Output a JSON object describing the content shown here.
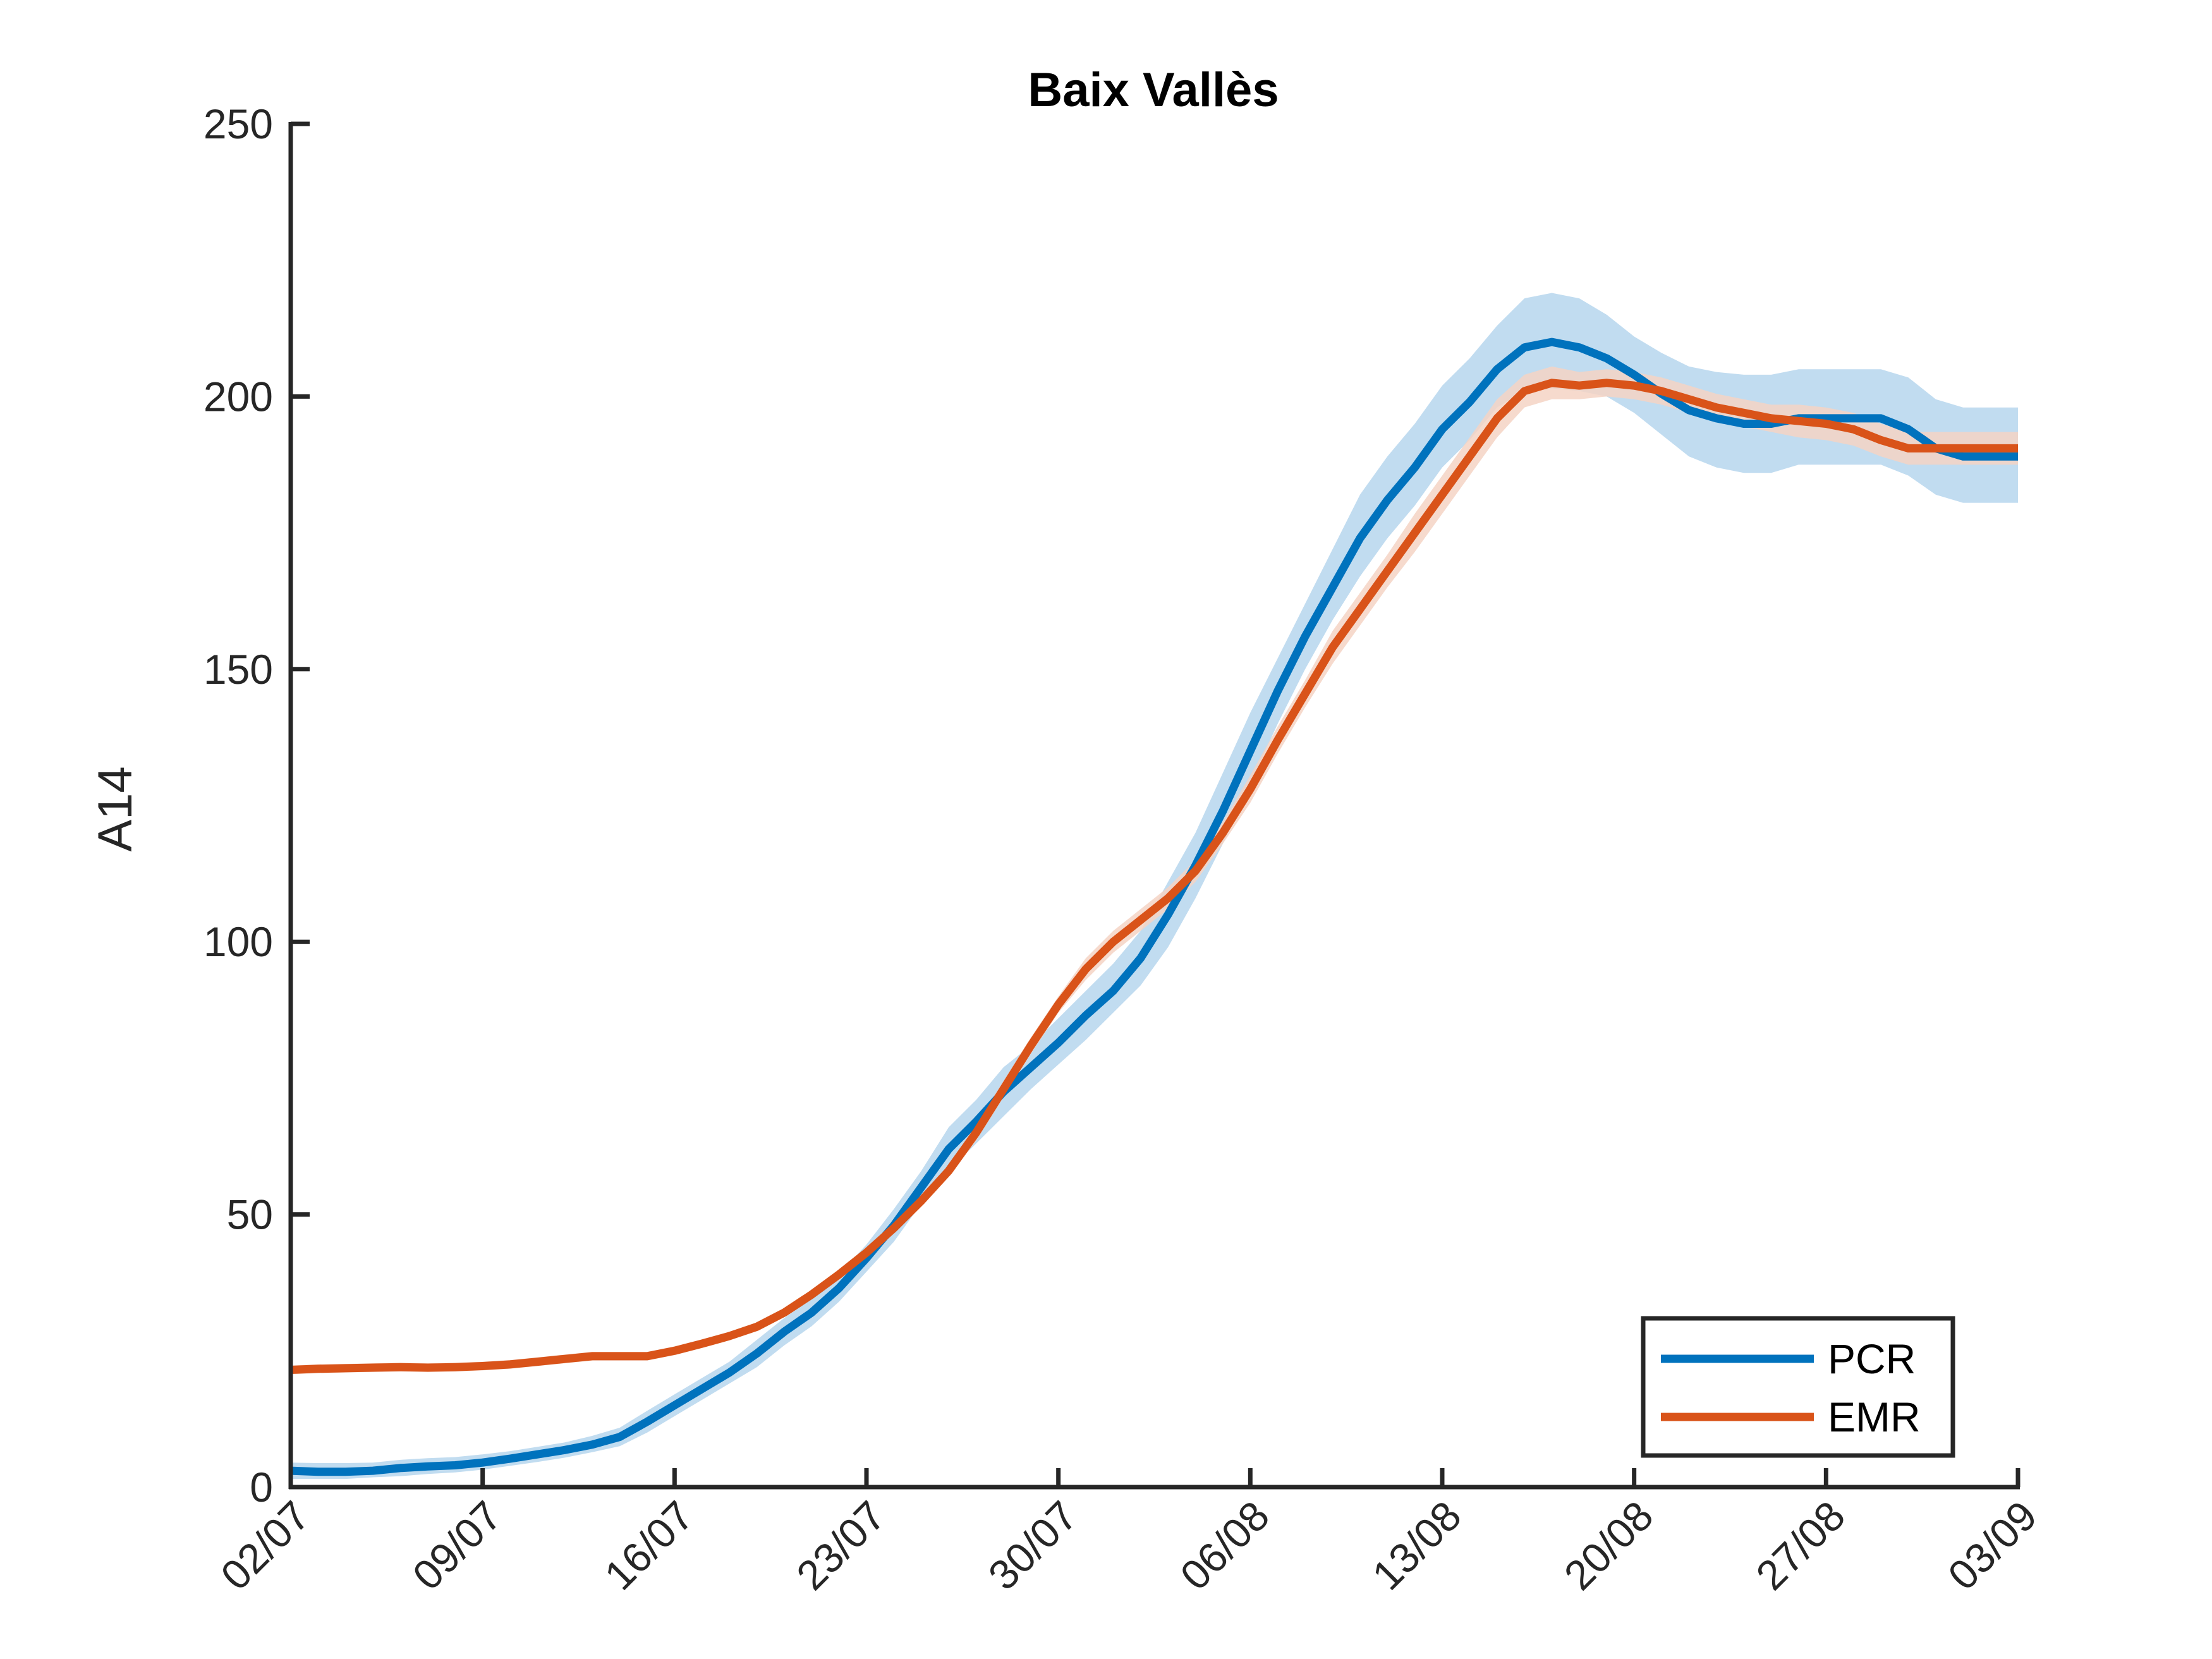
{
  "chart_data": {
    "type": "line",
    "title": "Baix Vallès",
    "xlabel": "",
    "ylabel": "A14",
    "ylim": [
      0,
      250
    ],
    "yticks": [
      "0",
      "50",
      "100",
      "150",
      "200",
      "250"
    ],
    "xtick_labels": [
      "02/07",
      "09/07",
      "16/07",
      "23/07",
      "30/07",
      "06/08",
      "13/08",
      "20/08",
      "27/08",
      "03/09"
    ],
    "xlim_days": [
      0,
      63
    ],
    "grid": false,
    "legend_position": "bottom-right",
    "series": [
      {
        "name": "PCR",
        "color": "#0072bd",
        "band_color": "#c1dcf0",
        "x": [
          0,
          1,
          2,
          3,
          4,
          5,
          6,
          7,
          8,
          9,
          10,
          11,
          12,
          13,
          14,
          15,
          16,
          17,
          18,
          19,
          20,
          21,
          22,
          23,
          24,
          25,
          26,
          27,
          28,
          29,
          30,
          31,
          32,
          33,
          34,
          35,
          36,
          37,
          38,
          39,
          40,
          41,
          42,
          43,
          44,
          45,
          46,
          47,
          48,
          49,
          50,
          51,
          52,
          53,
          54,
          55,
          56,
          57,
          58,
          59,
          60,
          61,
          62,
          63
        ],
        "values": [
          3,
          2.8,
          2.8,
          3,
          3.5,
          3.8,
          4,
          4.5,
          5.2,
          6,
          6.8,
          7.8,
          9.2,
          12,
          15,
          18,
          21,
          24.5,
          28.5,
          32,
          36.5,
          42,
          48,
          55,
          62,
          67,
          72.5,
          77,
          81.5,
          86.5,
          91,
          97,
          105,
          114,
          124,
          135,
          146,
          156,
          165,
          174,
          181,
          187,
          194,
          199,
          205,
          209,
          210,
          209,
          207,
          204,
          200.5,
          197.5,
          196,
          195,
          195,
          196,
          196,
          196,
          196,
          194,
          190.5,
          189,
          189,
          189
        ],
        "lower": [
          1.5,
          1.5,
          1.5,
          1.8,
          2,
          2.4,
          2.7,
          3.2,
          3.9,
          4.6,
          5.4,
          6.4,
          7.5,
          10,
          13,
          16,
          19,
          22,
          26,
          29.5,
          34,
          39.5,
          45,
          52,
          58,
          63,
          68,
          73,
          77.5,
          82,
          87,
          92,
          99,
          108,
          118,
          129,
          140,
          150,
          159,
          167,
          174,
          180,
          187,
          192,
          198,
          201,
          201.5,
          201,
          200,
          197,
          193,
          189,
          187,
          186,
          186,
          187.5,
          187.5,
          187.5,
          187.5,
          185.5,
          182,
          180.5,
          180.5,
          180.5
        ],
        "upper": [
          4.5,
          4.4,
          4.4,
          4.5,
          5,
          5.3,
          5.5,
          6,
          6.6,
          7.4,
          8.2,
          9.4,
          10.9,
          14,
          17,
          20,
          23,
          27,
          31,
          34.5,
          39,
          44.5,
          51,
          58,
          66,
          71,
          77,
          81,
          86,
          91,
          96,
          102,
          111,
          120,
          131,
          142,
          152,
          162,
          172,
          182,
          189,
          195,
          202,
          207,
          213,
          218,
          219,
          218,
          215,
          211,
          208,
          205.5,
          204.5,
          204,
          204,
          205,
          205,
          205,
          205,
          203.5,
          199.5,
          198,
          198,
          198
        ]
      },
      {
        "name": "EMR",
        "color": "#d95319",
        "band_color": "#f4d3c4",
        "x": [
          0,
          1,
          2,
          3,
          4,
          5,
          6,
          7,
          8,
          9,
          10,
          11,
          12,
          13,
          14,
          15,
          16,
          17,
          18,
          19,
          20,
          21,
          22,
          23,
          24,
          25,
          26,
          27,
          28,
          29,
          30,
          31,
          32,
          33,
          34,
          35,
          36,
          37,
          38,
          39,
          40,
          41,
          42,
          43,
          44,
          45,
          46,
          47,
          48,
          49,
          50,
          51,
          52,
          53,
          54,
          55,
          56,
          57,
          58,
          59,
          60,
          61,
          62,
          63
        ],
        "values": [
          21.5,
          21.7,
          21.8,
          21.9,
          22,
          21.9,
          22,
          22.2,
          22.5,
          23,
          23.5,
          24,
          24,
          24,
          25,
          26.3,
          27.7,
          29.4,
          32,
          35.3,
          39,
          43,
          47.5,
          52.5,
          58,
          65,
          73,
          81,
          88.5,
          95,
          100,
          104,
          108,
          113,
          120,
          128,
          137,
          145.5,
          154,
          161,
          168,
          175,
          182,
          189,
          196,
          201,
          202.5,
          202,
          202.5,
          202,
          201,
          199.5,
          198,
          197,
          196,
          195.5,
          195,
          194,
          192,
          190.5,
          190.5,
          190.5,
          190.5,
          190.5
        ],
        "lower": [
          20.7,
          20.9,
          21,
          21.1,
          21.2,
          21.1,
          21.2,
          21.4,
          21.7,
          22.2,
          22.7,
          23.2,
          23.2,
          23.2,
          24.2,
          25.5,
          26.9,
          28.6,
          31.2,
          34.5,
          38.2,
          42.2,
          46.7,
          51.5,
          57,
          63.5,
          71.5,
          79.5,
          87,
          93,
          98,
          102,
          106,
          111,
          118,
          125.5,
          134.5,
          143,
          151,
          158,
          165,
          171.5,
          178.5,
          185.5,
          192.5,
          198,
          199.5,
          199.5,
          200,
          199.5,
          198.5,
          197,
          195.5,
          194.5,
          193.5,
          192.5,
          192,
          191,
          189,
          187.5,
          187.5,
          187.5,
          187.5,
          187.5
        ],
        "upper": [
          22.3,
          22.5,
          22.6,
          22.7,
          22.8,
          22.7,
          22.8,
          23,
          23.3,
          23.8,
          24.3,
          24.8,
          24.8,
          24.8,
          25.8,
          27.1,
          28.5,
          30.2,
          32.8,
          36.1,
          39.8,
          43.8,
          48.3,
          53.5,
          59,
          66.5,
          74.5,
          82.5,
          90,
          97,
          102,
          106,
          110,
          115,
          122,
          130.5,
          139.5,
          148,
          157,
          164,
          171,
          178.5,
          185.5,
          192.5,
          199.5,
          204,
          205.5,
          204.5,
          205,
          204.5,
          203.5,
          202,
          200.5,
          199.5,
          198.5,
          198.5,
          198,
          197,
          195,
          193.5,
          193.5,
          193.5,
          193.5,
          193.5
        ]
      }
    ]
  }
}
